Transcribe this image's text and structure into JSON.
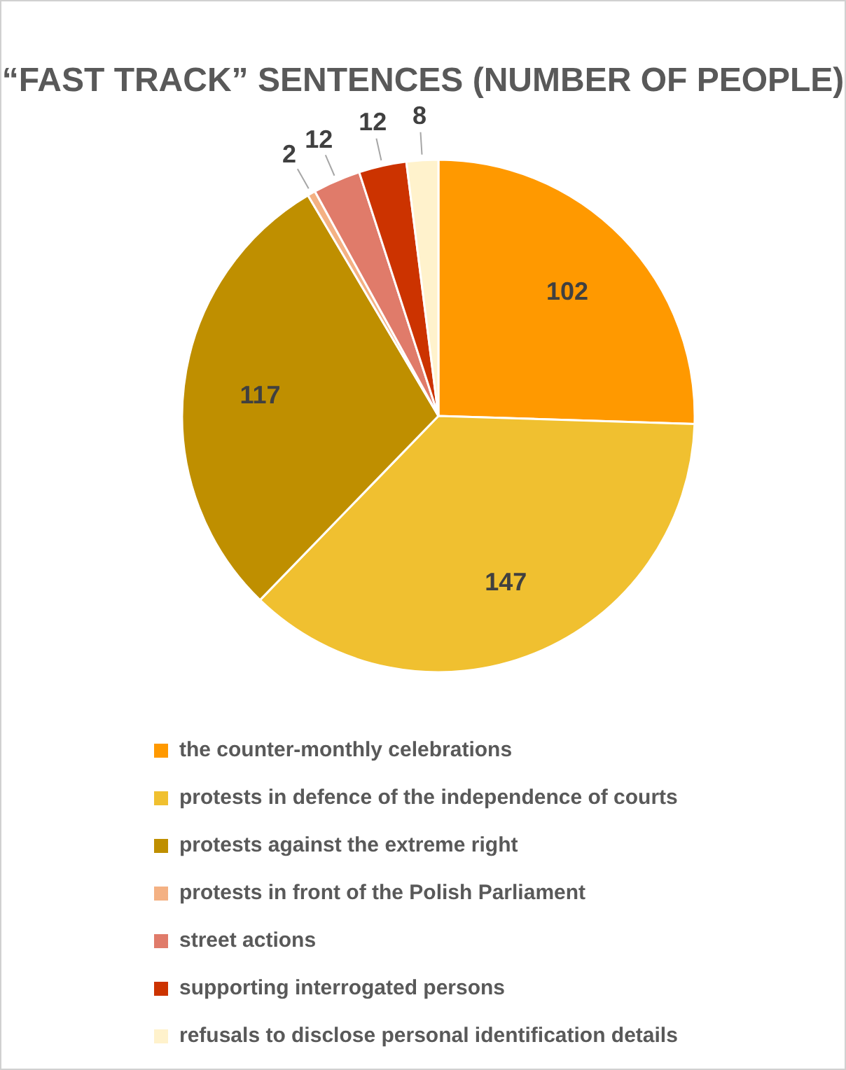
{
  "chart_data": {
    "type": "pie",
    "title": "“FAST TRACK” SENTENCES (NUMBER OF PEOPLE)",
    "categories": [
      "the counter-monthly celebrations",
      "protests in defence of the independence of courts",
      "protests against the extreme right",
      "protests in front of the Polish Parliament",
      "street actions",
      "supporting interrogated persons",
      "refusals to disclose personal identification details"
    ],
    "values": [
      102,
      147,
      117,
      2,
      12,
      12,
      8
    ],
    "colors": [
      "#ff9900",
      "#f0c030",
      "#bf8f00",
      "#f4b183",
      "#e07b6a",
      "#cc3300",
      "#fff2cc"
    ],
    "data_labels": true,
    "legend": "bottom"
  }
}
